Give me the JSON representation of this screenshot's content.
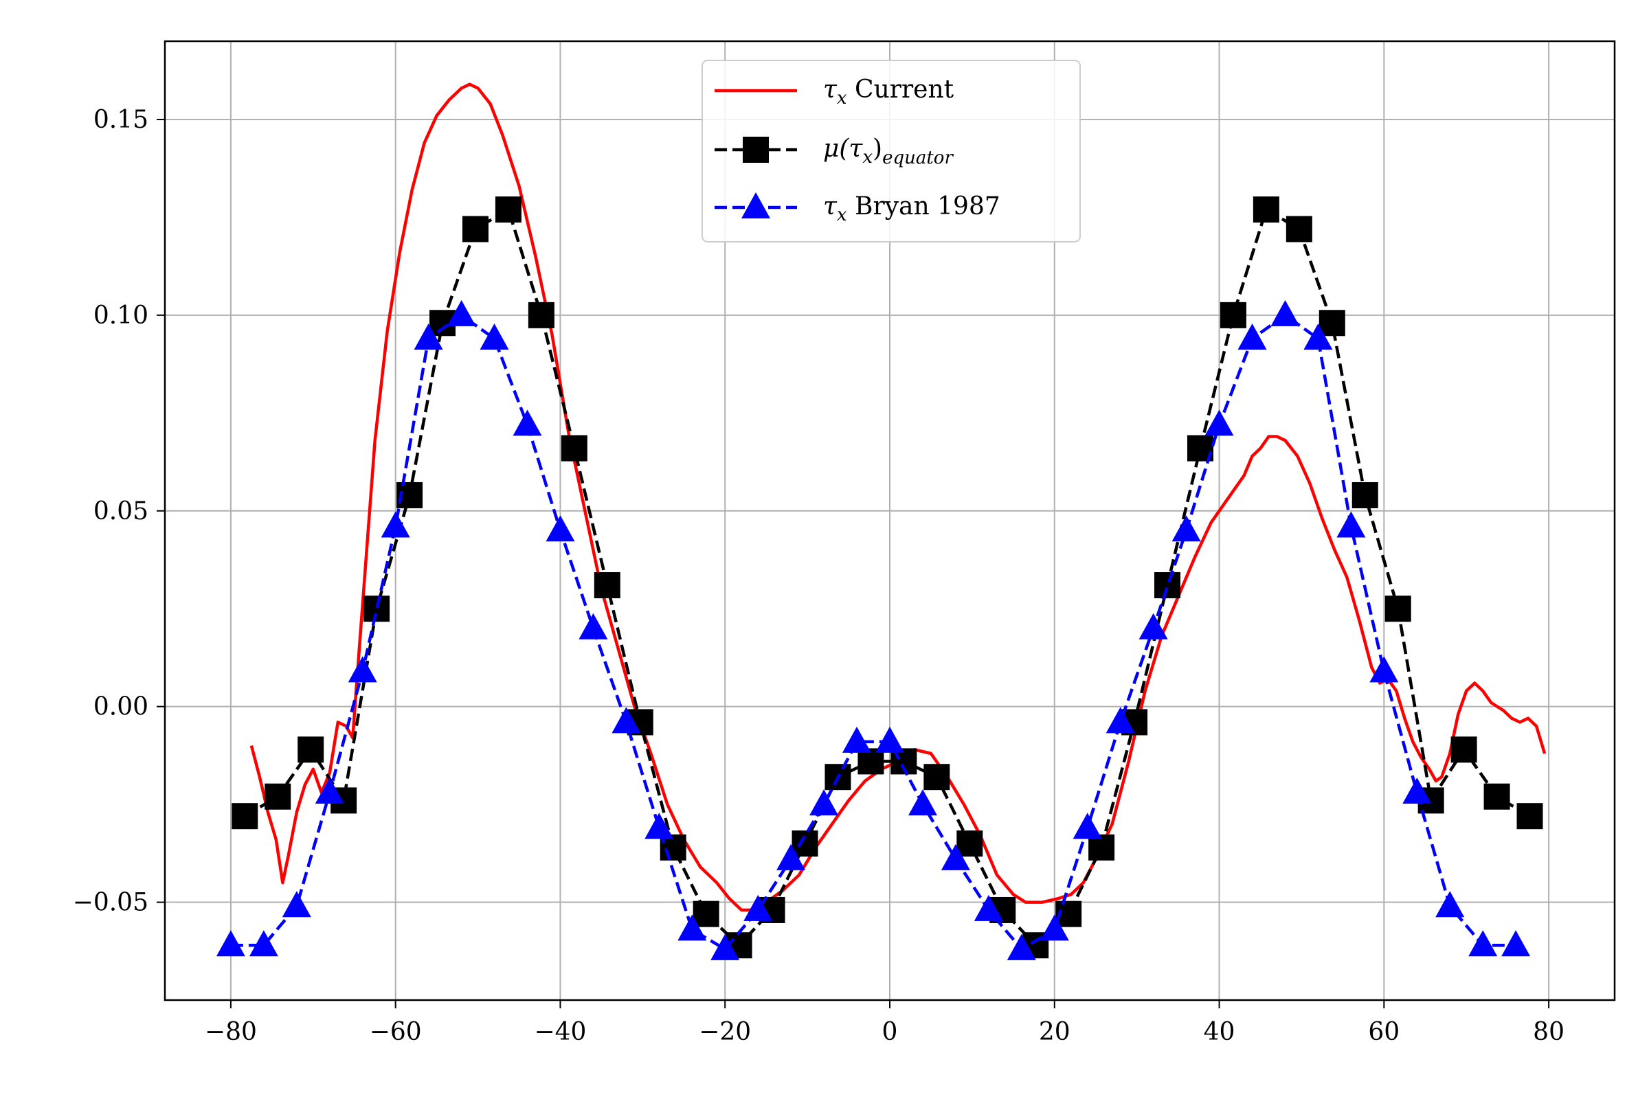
{
  "chart_data": {
    "type": "line",
    "title": "",
    "xlabel": "",
    "ylabel": "",
    "xlim": [
      -88,
      88
    ],
    "ylim": [
      -0.075,
      0.17
    ],
    "grid": true,
    "legend_position": "top-center",
    "x_ticks": [
      -80,
      -60,
      -40,
      -20,
      0,
      20,
      40,
      60,
      80
    ],
    "x_tick_labels": [
      "−80",
      "−60",
      "−40",
      "−20",
      "0",
      "20",
      "40",
      "60",
      "80"
    ],
    "y_ticks": [
      -0.05,
      0.0,
      0.05,
      0.1,
      0.15
    ],
    "y_tick_labels": [
      "−0.05",
      "0.00",
      "0.05",
      "0.10",
      "0.15"
    ],
    "series": [
      {
        "name": "τx Current",
        "legend_main": "τ",
        "legend_sub": "x",
        "legend_rest": " Current",
        "color": "#ff0000",
        "style": "solid",
        "marker": "none",
        "points": [
          [
            -77.5,
            -0.01
          ],
          [
            -76.5,
            -0.018
          ],
          [
            -75.5,
            -0.027
          ],
          [
            -74.5,
            -0.034
          ],
          [
            -73.7,
            -0.045
          ],
          [
            -73.0,
            -0.038
          ],
          [
            -72.0,
            -0.027
          ],
          [
            -71.0,
            -0.02
          ],
          [
            -70.0,
            -0.016
          ],
          [
            -69.0,
            -0.022
          ],
          [
            -68.0,
            -0.017
          ],
          [
            -67.0,
            -0.004
          ],
          [
            -66.0,
            -0.005
          ],
          [
            -65.2,
            -0.008
          ],
          [
            -64.5,
            0.012
          ],
          [
            -63.5,
            0.04
          ],
          [
            -62.5,
            0.068
          ],
          [
            -61.0,
            0.096
          ],
          [
            -59.5,
            0.116
          ],
          [
            -58.0,
            0.132
          ],
          [
            -56.5,
            0.144
          ],
          [
            -55.0,
            0.151
          ],
          [
            -53.5,
            0.155
          ],
          [
            -52.0,
            0.158
          ],
          [
            -51.0,
            0.159
          ],
          [
            -50.0,
            0.158
          ],
          [
            -48.5,
            0.154
          ],
          [
            -47.0,
            0.146
          ],
          [
            -45.0,
            0.133
          ],
          [
            -43.0,
            0.115
          ],
          [
            -41.0,
            0.095
          ],
          [
            -39.0,
            0.07
          ],
          [
            -37.0,
            0.05
          ],
          [
            -35.0,
            0.03
          ],
          [
            -33.0,
            0.015
          ],
          [
            -31.0,
            0.0
          ],
          [
            -29.0,
            -0.012
          ],
          [
            -27.0,
            -0.025
          ],
          [
            -25.0,
            -0.034
          ],
          [
            -23.0,
            -0.041
          ],
          [
            -21.0,
            -0.045
          ],
          [
            -19.5,
            -0.049
          ],
          [
            -18.0,
            -0.052
          ],
          [
            -16.5,
            -0.052
          ],
          [
            -15.0,
            -0.05
          ],
          [
            -13.0,
            -0.047
          ],
          [
            -11.0,
            -0.043
          ],
          [
            -9.0,
            -0.036
          ],
          [
            -7.0,
            -0.03
          ],
          [
            -5.0,
            -0.024
          ],
          [
            -3.0,
            -0.019
          ],
          [
            -1.0,
            -0.016
          ],
          [
            1.0,
            -0.014
          ],
          [
            3.0,
            -0.011
          ],
          [
            5.0,
            -0.012
          ],
          [
            7.0,
            -0.018
          ],
          [
            9.0,
            -0.025
          ],
          [
            11.0,
            -0.033
          ],
          [
            13.0,
            -0.043
          ],
          [
            15.0,
            -0.048
          ],
          [
            16.5,
            -0.05
          ],
          [
            18.5,
            -0.05
          ],
          [
            20.5,
            -0.049
          ],
          [
            22.0,
            -0.048
          ],
          [
            23.5,
            -0.045
          ],
          [
            25.0,
            -0.039
          ],
          [
            27.0,
            -0.03
          ],
          [
            29.0,
            -0.014
          ],
          [
            31.0,
            0.004
          ],
          [
            33.0,
            0.018
          ],
          [
            35.0,
            0.028
          ],
          [
            37.0,
            0.038
          ],
          [
            39.0,
            0.047
          ],
          [
            41.0,
            0.053
          ],
          [
            43.0,
            0.059
          ],
          [
            44.0,
            0.064
          ],
          [
            45.0,
            0.066
          ],
          [
            46.0,
            0.069
          ],
          [
            47.0,
            0.069
          ],
          [
            48.0,
            0.068
          ],
          [
            49.5,
            0.064
          ],
          [
            51.0,
            0.057
          ],
          [
            52.5,
            0.048
          ],
          [
            54.0,
            0.04
          ],
          [
            55.5,
            0.033
          ],
          [
            57.0,
            0.022
          ],
          [
            58.5,
            0.01
          ],
          [
            59.5,
            0.006
          ],
          [
            60.5,
            0.007
          ],
          [
            61.5,
            0.004
          ],
          [
            62.5,
            -0.003
          ],
          [
            63.5,
            -0.009
          ],
          [
            64.5,
            -0.013
          ],
          [
            65.5,
            -0.016
          ],
          [
            66.3,
            -0.019
          ],
          [
            67.0,
            -0.018
          ],
          [
            68.0,
            -0.012
          ],
          [
            69.0,
            -0.002
          ],
          [
            70.0,
            0.004
          ],
          [
            71.0,
            0.006
          ],
          [
            72.0,
            0.004
          ],
          [
            73.0,
            0.001
          ],
          [
            74.5,
            -0.001
          ],
          [
            75.5,
            -0.003
          ],
          [
            76.5,
            -0.004
          ],
          [
            77.5,
            -0.003
          ],
          [
            78.5,
            -0.005
          ],
          [
            79.5,
            -0.012
          ]
        ]
      },
      {
        "name": "μ(τx)equator",
        "legend_main": "μ(τ",
        "legend_sub1": "x",
        "legend_mid": ")",
        "legend_sub2": "equator",
        "color": "#000000",
        "style": "dashed",
        "marker": "square",
        "points": [
          [
            -78.3,
            -0.028
          ],
          [
            -74.3,
            -0.023
          ],
          [
            -70.3,
            -0.011
          ],
          [
            -66.3,
            -0.024
          ],
          [
            -62.3,
            0.025
          ],
          [
            -58.3,
            0.054
          ],
          [
            -54.3,
            0.098
          ],
          [
            -50.3,
            0.122
          ],
          [
            -46.3,
            0.127
          ],
          [
            -42.3,
            0.1
          ],
          [
            -38.3,
            0.066
          ],
          [
            -34.3,
            0.031
          ],
          [
            -30.3,
            -0.004
          ],
          [
            -26.3,
            -0.036
          ],
          [
            -22.3,
            -0.053
          ],
          [
            -18.3,
            -0.061
          ],
          [
            -14.3,
            -0.052
          ],
          [
            -10.3,
            -0.035
          ],
          [
            -6.3,
            -0.018
          ],
          [
            -2.3,
            -0.014
          ],
          [
            1.7,
            -0.014
          ],
          [
            5.7,
            -0.018
          ],
          [
            9.7,
            -0.035
          ],
          [
            13.7,
            -0.052
          ],
          [
            17.7,
            -0.061
          ],
          [
            21.7,
            -0.053
          ],
          [
            25.7,
            -0.036
          ],
          [
            29.7,
            -0.004
          ],
          [
            33.7,
            0.031
          ],
          [
            37.7,
            0.066
          ],
          [
            41.7,
            0.1
          ],
          [
            45.7,
            0.127
          ],
          [
            49.7,
            0.122
          ],
          [
            53.7,
            0.098
          ],
          [
            57.7,
            0.054
          ],
          [
            61.7,
            0.025
          ],
          [
            65.7,
            -0.024
          ],
          [
            69.7,
            -0.011
          ],
          [
            73.7,
            -0.023
          ],
          [
            77.7,
            -0.028
          ]
        ]
      },
      {
        "name": "τx Bryan 1987",
        "legend_main": "τ",
        "legend_sub": "x",
        "legend_rest": " Bryan 1987",
        "color": "#0000ff",
        "style": "dashed",
        "marker": "triangle",
        "points": [
          [
            -80.0,
            -0.061
          ],
          [
            -76.0,
            -0.061
          ],
          [
            -72.0,
            -0.051
          ],
          [
            -68.0,
            -0.022
          ],
          [
            -64.0,
            0.009
          ],
          [
            -60.0,
            0.046
          ],
          [
            -56.0,
            0.094
          ],
          [
            -52.0,
            0.1
          ],
          [
            -48.0,
            0.094
          ],
          [
            -44.0,
            0.072
          ],
          [
            -40.0,
            0.045
          ],
          [
            -36.0,
            0.02
          ],
          [
            -32.0,
            -0.004
          ],
          [
            -28.0,
            -0.031
          ],
          [
            -24.0,
            -0.057
          ],
          [
            -20.0,
            -0.062
          ],
          [
            -16.0,
            -0.052
          ],
          [
            -12.0,
            -0.039
          ],
          [
            -8.0,
            -0.025
          ],
          [
            -4.0,
            -0.009
          ],
          [
            0.0,
            -0.009
          ],
          [
            4.0,
            -0.025
          ],
          [
            8.0,
            -0.039
          ],
          [
            12.0,
            -0.052
          ],
          [
            16.0,
            -0.062
          ],
          [
            20.0,
            -0.057
          ],
          [
            24.0,
            -0.031
          ],
          [
            28.0,
            -0.004
          ],
          [
            32.0,
            0.02
          ],
          [
            36.0,
            0.045
          ],
          [
            40.0,
            0.072
          ],
          [
            44.0,
            0.094
          ],
          [
            48.0,
            0.1
          ],
          [
            52.0,
            0.094
          ],
          [
            56.0,
            0.046
          ],
          [
            60.0,
            0.009
          ],
          [
            64.0,
            -0.022
          ],
          [
            68.0,
            -0.051
          ],
          [
            72.0,
            -0.061
          ],
          [
            76.0,
            -0.061
          ]
        ]
      }
    ]
  }
}
